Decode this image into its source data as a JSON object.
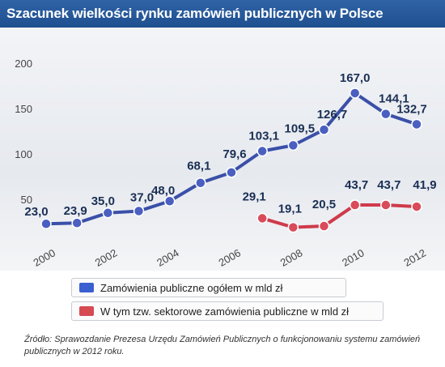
{
  "title": "Szacunek wielkości rynku zamówień publicznych w Polsce",
  "colors": {
    "title_bg": "#2354a0",
    "series_total": "#3a4fa8",
    "series_total_marker": "#4a5fc0",
    "series_sector": "#cf3a4a",
    "series_sector_marker": "#d94b5a"
  },
  "legend": [
    {
      "label": "Zamówienia publiczne ogółem w mld zł",
      "color": "#3a5fd0"
    },
    {
      "label": "W tym tzw. sektorowe zamówienia publiczne w mld zł",
      "color": "#d64a52"
    }
  ],
  "source": "Źródło: Sprawozdanie Prezesa Urzędu Zamówień Publicznych o funkcjonowaniu systemu zamówień publicznych w 2012 roku.",
  "chart_data": {
    "type": "line",
    "title": "Szacunek wielkości rynku zamówień publicznych w Polsce",
    "xlabel": "",
    "ylabel": "",
    "x": [
      2000,
      2001,
      2002,
      2003,
      2004,
      2005,
      2006,
      2007,
      2008,
      2009,
      2010,
      2011,
      2012
    ],
    "x_tick_labels": [
      "2000",
      "2002",
      "2004",
      "2006",
      "2008",
      "2010",
      "2012"
    ],
    "y_ticks": [
      50,
      100,
      150,
      200
    ],
    "ylim": [
      0,
      210
    ],
    "grid": false,
    "legend_position": "bottom",
    "series": [
      {
        "name": "Zamówienia publiczne ogółem w mld zł",
        "x": [
          2000,
          2001,
          2002,
          2003,
          2004,
          2005,
          2006,
          2007,
          2008,
          2009,
          2010,
          2011,
          2012
        ],
        "values": [
          23.0,
          23.9,
          35.0,
          37.0,
          48.0,
          68.1,
          79.6,
          103.1,
          109.5,
          126.7,
          167.0,
          144.1,
          132.7
        ],
        "labels": [
          "23,0",
          "23,9",
          "35,0",
          "37,0",
          "48,0",
          "68,1",
          "79,6",
          "103,1",
          "109,5",
          "126,7",
          "167,0",
          "144,1",
          "132,7"
        ]
      },
      {
        "name": "W tym tzw. sektorowe zamówienia publiczne w mld zł",
        "x": [
          2007,
          2008,
          2009,
          2010,
          2011,
          2012
        ],
        "values": [
          29.1,
          19.1,
          20.5,
          43.7,
          43.7,
          41.9
        ],
        "labels": [
          "29,1",
          "19,1",
          "20,5",
          "43,7",
          "43,7",
          "41,9"
        ]
      }
    ]
  }
}
